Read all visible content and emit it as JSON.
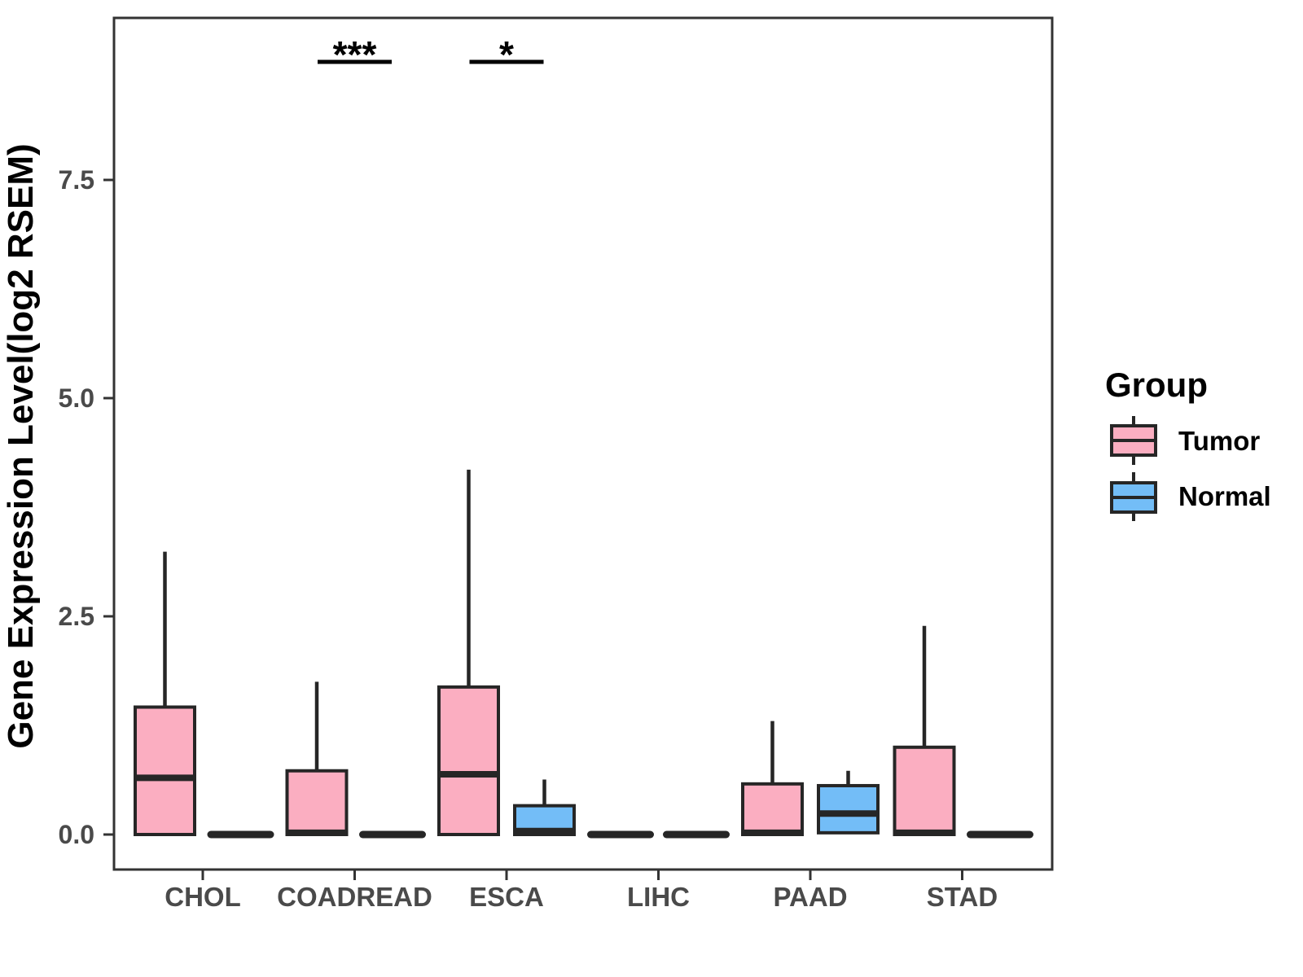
{
  "figure": {
    "background": "#FFFFFF"
  },
  "legend": {
    "title": "Group",
    "items": [
      {
        "label": "Tumor",
        "color": "#FBAEC1"
      },
      {
        "label": "Normal",
        "color": "#73BDF7"
      }
    ]
  },
  "chart_data": {
    "type": "boxplot",
    "title": "",
    "xlabel": "",
    "ylabel": "Gene Expression Level(log2 RSEM)",
    "categories": [
      "CHOL",
      "COADREAD",
      "ESCA",
      "LIHC",
      "PAAD",
      "STAD"
    ],
    "groups": [
      "Tumor",
      "Normal"
    ],
    "y_ticks": [
      {
        "value": 0.0,
        "label": "0.0"
      },
      {
        "value": 2.5,
        "label": "2.5"
      },
      {
        "value": 5.0,
        "label": "5.0"
      },
      {
        "value": 7.5,
        "label": "7.5"
      }
    ],
    "ylim": [
      -0.4,
      9.35
    ],
    "grid": false,
    "legend_position": "right",
    "colors": {
      "tumor": "#FBAEC1",
      "normal": "#73BDF7",
      "box_stroke": "#262626",
      "panel_border": "#333333",
      "tick_text": "#4A4A4A",
      "axis_title": "#000000",
      "significance": "#000000"
    },
    "series": [
      {
        "name": "Tumor",
        "boxes": [
          {
            "category": "CHOL",
            "low": 0,
            "q1": 0,
            "median": 0.65,
            "q3": 1.46,
            "high": 3.24
          },
          {
            "category": "COADREAD",
            "low": 0,
            "q1": 0,
            "median": 0.02,
            "q3": 0.73,
            "high": 1.75
          },
          {
            "category": "ESCA",
            "low": 0,
            "q1": 0,
            "median": 0.69,
            "q3": 1.69,
            "high": 4.18
          },
          {
            "category": "LIHC",
            "low": 0,
            "q1": 0,
            "median": 0.0,
            "q3": 0.0,
            "high": 0.0
          },
          {
            "category": "PAAD",
            "low": 0,
            "q1": 0,
            "median": 0.02,
            "q3": 0.58,
            "high": 1.3
          },
          {
            "category": "STAD",
            "low": 0,
            "q1": 0,
            "median": 0.02,
            "q3": 1.0,
            "high": 2.39
          }
        ]
      },
      {
        "name": "Normal",
        "boxes": [
          {
            "category": "CHOL",
            "low": 0,
            "q1": 0,
            "median": 0.0,
            "q3": 0.0,
            "high": 0.0
          },
          {
            "category": "COADREAD",
            "low": 0,
            "q1": 0,
            "median": 0.0,
            "q3": 0.0,
            "high": 0.0
          },
          {
            "category": "ESCA",
            "low": 0,
            "q1": 0,
            "median": 0.04,
            "q3": 0.33,
            "high": 0.63
          },
          {
            "category": "LIHC",
            "low": 0,
            "q1": 0,
            "median": 0.0,
            "q3": 0.0,
            "high": 0.0
          },
          {
            "category": "PAAD",
            "low": 0.02,
            "q1": 0.02,
            "median": 0.24,
            "q3": 0.56,
            "high": 0.73
          },
          {
            "category": "STAD",
            "low": 0,
            "q1": 0,
            "median": 0.0,
            "q3": 0.0,
            "high": 0.0
          }
        ]
      }
    ],
    "significance": [
      {
        "category": "COADREAD",
        "label": "***"
      },
      {
        "category": "ESCA",
        "label": "*"
      }
    ]
  }
}
